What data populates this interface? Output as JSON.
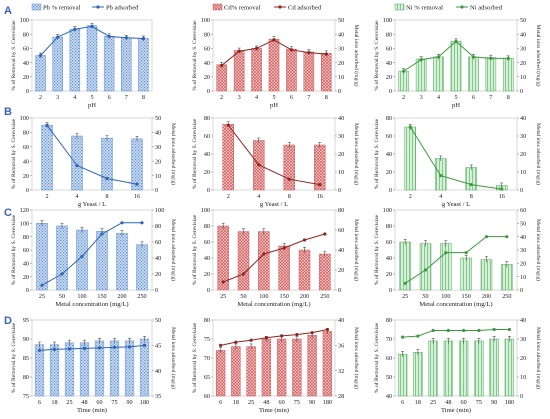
{
  "row_labels": [
    "A",
    "B",
    "C",
    "D"
  ],
  "colors": {
    "Pb": {
      "fill": "#d2dff2",
      "pattern": "#5b8fd4",
      "line": "#2e65b8"
    },
    "Cd": {
      "fill": "#f6d8d4",
      "pattern": "#d0585d",
      "line": "#8e2520"
    },
    "Ni": {
      "fill": "#d6f0d8",
      "pattern": "#4cae5c",
      "line": "#3c9a3c"
    }
  },
  "chart_data": [
    {
      "type": "bar",
      "row": "A",
      "metal": "Pb",
      "xlabel": "pH",
      "ylabel": "% of Removal by S. Cerevisiae",
      "y2label": "Metal ions adsorbed (mg/g)",
      "categories": [
        "2",
        "3",
        "4",
        "5",
        "6",
        "7",
        "8"
      ],
      "ylim": [
        0,
        100
      ],
      "yticks": [
        0,
        20,
        40,
        60,
        80,
        100
      ],
      "y2lim": [
        0,
        50
      ],
      "y2ticks": [],
      "series": [
        {
          "name": "Pb % removal",
          "values": [
            50,
            76,
            87,
            92,
            77,
            75,
            74
          ]
        }
      ],
      "line": {
        "name": "Pb adsorbed",
        "values": [
          25,
          38,
          43.5,
          45.5,
          38.5,
          37.5,
          37
        ]
      },
      "legend": [
        "Pb % removal",
        "Pb adsorbed"
      ],
      "show_y1_title": true,
      "show_y2_title": false
    },
    {
      "type": "bar",
      "row": "A",
      "metal": "Cd",
      "xlabel": "pH",
      "ylabel": "% of Removal by S. Cerevisiae",
      "y2label": "Metal ions adsorbed (mg/g)",
      "categories": [
        "2",
        "3",
        "4",
        "5",
        "6",
        "7",
        "8"
      ],
      "ylim": [
        0,
        100
      ],
      "yticks": [
        0,
        20,
        40,
        60,
        80,
        100
      ],
      "y2lim": [
        0,
        50
      ],
      "y2ticks": [
        0,
        10,
        20,
        30,
        40,
        50
      ],
      "series": [
        {
          "name": "Cd% removal",
          "values": [
            37,
            57,
            60,
            73,
            59,
            55,
            53
          ]
        }
      ],
      "line": {
        "name": "Cd adsorbed",
        "values": [
          18,
          28,
          30,
          36,
          29,
          27,
          26
        ]
      },
      "legend": [
        "Cd% removal",
        "Cd adsorbed"
      ],
      "show_y1_title": true,
      "show_y2_title": true
    },
    {
      "type": "bar",
      "row": "A",
      "metal": "Ni",
      "xlabel": "pH",
      "ylabel": "% of Removal by S. Cerevisiae",
      "y2label": "Metal ions adsorbed (mg/g)",
      "categories": [
        "2",
        "3",
        "4",
        "5",
        "6",
        "7",
        "8"
      ],
      "ylim": [
        0,
        100
      ],
      "yticks": [
        0,
        20,
        40,
        60,
        80,
        100
      ],
      "y2lim": [
        0,
        50
      ],
      "y2ticks": [
        0,
        10,
        20,
        30,
        40,
        50
      ],
      "series": [
        {
          "name": "Ni % removal",
          "values": [
            28,
            45,
            48,
            70,
            48,
            47,
            46
          ]
        }
      ],
      "line": {
        "name": "Ni adsorbed",
        "values": [
          14,
          22,
          24,
          35,
          24,
          23,
          23
        ]
      },
      "legend": [
        "Ni % removal",
        "Ni adsorbed"
      ],
      "show_y1_title": true,
      "show_y2_title": true
    },
    {
      "type": "bar",
      "row": "B",
      "metal": "Pb",
      "xlabel": "g Yeast / L",
      "ylabel": "% of Removal by S. Cerevisiae",
      "y2label": "Metal ions adsorbed (mg/g)",
      "categories": [
        "2",
        "4",
        "8",
        "16"
      ],
      "ylim": [
        0,
        100
      ],
      "yticks": [
        0,
        20,
        40,
        60,
        80,
        100
      ],
      "y2lim": [
        0,
        50
      ],
      "y2ticks": [
        0,
        10,
        20,
        30,
        40,
        50
      ],
      "series": [
        {
          "name": "Pb % removal",
          "values": [
            90,
            75,
            72,
            71
          ]
        }
      ],
      "line": {
        "name": "Pb adsorbed",
        "values": [
          45,
          17,
          8,
          4
        ]
      },
      "legend": [],
      "show_y1_title": true,
      "show_y2_title": true
    },
    {
      "type": "bar",
      "row": "B",
      "metal": "Cd",
      "xlabel": "g Yeast / L",
      "ylabel": "% of Removal by S. Cerevisiae",
      "y2label": "Metal ions adsorbed (mg/g)",
      "categories": [
        "2",
        "4",
        "8",
        "16"
      ],
      "ylim": [
        0,
        80
      ],
      "yticks": [
        0,
        20,
        40,
        60,
        80
      ],
      "y2lim": [
        0,
        40
      ],
      "y2ticks": [
        0,
        10,
        20,
        30,
        40
      ],
      "series": [
        {
          "name": "Cd% removal",
          "values": [
            73,
            55,
            50,
            50
          ]
        }
      ],
      "line": {
        "name": "Cd adsorbed",
        "values": [
          36,
          14,
          6,
          3
        ]
      },
      "legend": [],
      "show_y1_title": true,
      "show_y2_title": true
    },
    {
      "type": "bar",
      "row": "B",
      "metal": "Ni",
      "xlabel": "g Yeast / L",
      "ylabel": "% of Removal by S. Cerevisiae",
      "y2label": "Metal ions adsorbed (mg/g)",
      "categories": [
        "2",
        "4",
        "8",
        "16"
      ],
      "ylim": [
        0,
        80
      ],
      "yticks": [
        0,
        20,
        40,
        60,
        80
      ],
      "y2lim": [
        0,
        40
      ],
      "y2ticks": [
        0,
        10,
        20,
        30,
        40
      ],
      "series": [
        {
          "name": "Ni % removal",
          "values": [
            70,
            35,
            25,
            5
          ]
        }
      ],
      "line": {
        "name": "Ni adsorbed",
        "values": [
          35,
          8,
          3,
          0.5
        ]
      },
      "legend": [],
      "show_y1_title": true,
      "show_y2_title": true
    },
    {
      "type": "bar",
      "row": "C",
      "metal": "Pb",
      "xlabel": "Metal concentration (mg/L)",
      "ylabel": "% of Removal by S. Cerevisiae",
      "y2label": "Metal ions adsorbed (mg/g)",
      "categories": [
        "25",
        "50",
        "100",
        "150",
        "200",
        "250"
      ],
      "ylim": [
        0,
        120
      ],
      "yticks": [
        0,
        20,
        40,
        60,
        80,
        100,
        120
      ],
      "y2lim": [
        0,
        100
      ],
      "y2ticks": [
        0,
        20,
        40,
        60,
        80,
        100
      ],
      "series": [
        {
          "name": "Pb % removal",
          "values": [
            100,
            96,
            90,
            88,
            85,
            68
          ]
        }
      ],
      "line": {
        "name": "Pb adsorbed",
        "values": [
          6,
          20,
          42,
          70,
          84,
          84
        ]
      },
      "legend": [],
      "show_y1_title": true,
      "show_y2_title": true
    },
    {
      "type": "bar",
      "row": "C",
      "metal": "Cd",
      "xlabel": "Metal concentration (mg/L)",
      "ylabel": "% of Removal by S. Cerevisiae",
      "y2label": "Metal ions adsorbed (mg/g)",
      "categories": [
        "25",
        "50",
        "100",
        "150",
        "200",
        "250"
      ],
      "ylim": [
        0,
        100
      ],
      "yticks": [
        0,
        20,
        40,
        60,
        80,
        100
      ],
      "y2lim": [
        0,
        80
      ],
      "y2ticks": [
        0,
        20,
        40,
        60,
        80
      ],
      "series": [
        {
          "name": "Cd% removal",
          "values": [
            80,
            73,
            73,
            55,
            50,
            45
          ]
        }
      ],
      "line": {
        "name": "Cd adsorbed",
        "values": [
          8,
          16,
          36,
          42,
          50,
          56
        ]
      },
      "legend": [],
      "show_y1_title": true,
      "show_y2_title": true
    },
    {
      "type": "bar",
      "row": "C",
      "metal": "Ni",
      "xlabel": "Metal concentration (mg/L)",
      "ylabel": "% of Removal by S. Cerevisiae",
      "y2label": "Metal ions adsorbed (mg/g)",
      "categories": [
        "25",
        "50",
        "100",
        "150",
        "200",
        "250"
      ],
      "ylim": [
        0,
        100
      ],
      "yticks": [
        0,
        20,
        40,
        60,
        80,
        100
      ],
      "y2lim": [
        0,
        60
      ],
      "y2ticks": [
        0,
        10,
        20,
        30,
        40,
        50,
        60
      ],
      "series": [
        {
          "name": "Ni % removal",
          "values": [
            60,
            58,
            58,
            40,
            38,
            32
          ]
        }
      ],
      "line": {
        "name": "Ni adsorbed",
        "values": [
          5,
          15,
          28,
          28,
          40,
          40
        ]
      },
      "legend": [],
      "show_y1_title": true,
      "show_y2_title": true
    },
    {
      "type": "bar",
      "row": "D",
      "metal": "Pb",
      "xlabel": "Time (min)",
      "ylabel": "% of Removal by S. Cerevisiae",
      "y2label": "Metal ions adsorbed (mg/g)",
      "categories": [
        "6",
        "18",
        "25",
        "48",
        "60",
        "75",
        "90",
        "180"
      ],
      "ylim": [
        75,
        95
      ],
      "yticks": [
        75,
        80,
        85,
        90,
        95
      ],
      "y2lim": [
        35,
        50
      ],
      "y2ticks": [
        35,
        40,
        45,
        50
      ],
      "series": [
        {
          "name": "Pb % removal",
          "values": [
            88.5,
            88.5,
            89,
            89,
            89.5,
            89.5,
            89.5,
            90
          ]
        }
      ],
      "line": {
        "name": "Pb adsorbed",
        "values": [
          44,
          44.2,
          44.3,
          44.4,
          44.5,
          44.6,
          44.7,
          45
        ]
      },
      "legend": [],
      "show_y1_title": true,
      "show_y2_title": true
    },
    {
      "type": "bar",
      "row": "D",
      "metal": "Cd",
      "xlabel": "Time (min)",
      "ylabel": "% of Removal by S. Cerevisiae",
      "y2label": "Metal ions adsorbed (mg/g)",
      "categories": [
        "6",
        "18",
        "25",
        "48",
        "60",
        "75",
        "90",
        "180"
      ],
      "ylim": [
        60,
        80
      ],
      "yticks": [
        60,
        65,
        70,
        75,
        80
      ],
      "y2lim": [
        28,
        40
      ],
      "y2ticks": [
        28,
        32,
        36,
        40
      ],
      "series": [
        {
          "name": "Cd% removal",
          "values": [
            72,
            73,
            73,
            75,
            75,
            75,
            76,
            77
          ]
        }
      ],
      "line": {
        "name": "Cd adsorbed",
        "values": [
          36,
          36.5,
          36.8,
          37.2,
          37.5,
          37.7,
          38,
          38.5
        ]
      },
      "legend": [],
      "show_y1_title": true,
      "show_y2_title": true
    },
    {
      "type": "bar",
      "row": "D",
      "metal": "Ni",
      "xlabel": "Time (min)",
      "ylabel": "% of Removal by S. Cerevisiae",
      "y2label": "Metal ions adsorbed (mg/g)",
      "categories": [
        "6",
        "18",
        "25",
        "48",
        "60",
        "75",
        "90",
        "180"
      ],
      "ylim": [
        40,
        80
      ],
      "yticks": [
        40,
        50,
        60,
        70,
        80
      ],
      "y2lim": [
        0,
        40
      ],
      "y2ticks": [
        0,
        10,
        20,
        30,
        40
      ],
      "series": [
        {
          "name": "Ni % removal",
          "values": [
            62,
            63,
            69,
            69,
            69,
            69,
            70,
            70
          ]
        }
      ],
      "line": {
        "name": "Ni adsorbed",
        "values": [
          31,
          31.5,
          34.5,
          34.5,
          34.5,
          34.5,
          35,
          35
        ]
      },
      "legend": [],
      "show_y1_title": true,
      "show_y2_title": true
    }
  ]
}
